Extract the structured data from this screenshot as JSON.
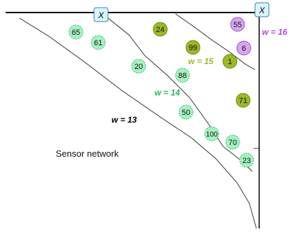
{
  "caption": "Sensor network",
  "colors": {
    "light_green_fill": "#a8f0c0",
    "light_green_stroke": "#2bbf6a",
    "olive_fill": "#9ab82a",
    "olive_stroke": "#6f8c12",
    "purple_fill": "#d7a6f0",
    "purple_stroke": "#9a55c4",
    "marker_fill": "#d8f4ff",
    "marker_stroke": "#3a7fa6",
    "label_w13": "#000000",
    "label_w14": "#2db36a",
    "label_w15": "#9ab82a",
    "label_w16": "#b248d6"
  },
  "markers": [
    {
      "id": "marker-top",
      "label": "X"
    },
    {
      "id": "marker-corner",
      "label": "X"
    }
  ],
  "boundary_labels": [
    {
      "id": "w13",
      "text": "w = 13"
    },
    {
      "id": "w14",
      "text": "w = 14"
    },
    {
      "id": "w15",
      "text": "w = 15"
    },
    {
      "id": "w16",
      "text": "w = 16"
    }
  ],
  "nodes": [
    {
      "label": "65",
      "style": "light"
    },
    {
      "label": "61",
      "style": "light"
    },
    {
      "label": "24",
      "style": "olive"
    },
    {
      "label": "55",
      "style": "purple"
    },
    {
      "label": "99",
      "style": "olive"
    },
    {
      "label": "6",
      "style": "purple"
    },
    {
      "label": "1",
      "style": "olive"
    },
    {
      "label": "20",
      "style": "light"
    },
    {
      "label": "88",
      "style": "light"
    },
    {
      "label": "71",
      "style": "olive"
    },
    {
      "label": "50",
      "style": "light"
    },
    {
      "label": "100",
      "style": "light"
    },
    {
      "label": "70",
      "style": "light"
    },
    {
      "label": "23",
      "style": "light"
    }
  ]
}
